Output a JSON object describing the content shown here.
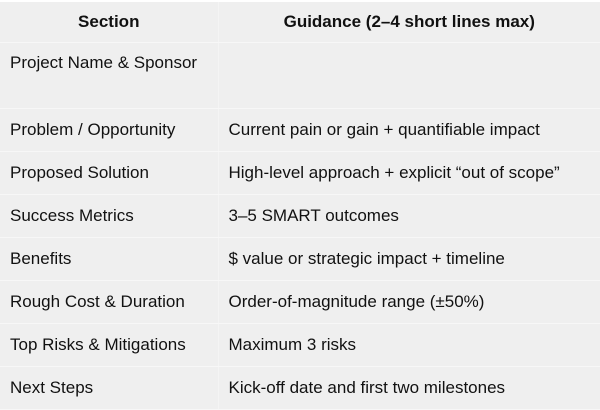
{
  "headers": [
    "Section",
    "Guidance (2–4 short lines max)"
  ],
  "rows": [
    {
      "section": "Project Name & Sponsor",
      "guidance": ""
    },
    {
      "section": "Problem / Opportunity",
      "guidance": "Current pain or gain + quantifiable impact"
    },
    {
      "section": "Proposed Solution",
      "guidance": "High-level approach + explicit “out of scope”"
    },
    {
      "section": "Success Metrics",
      "guidance": "3–5 SMART outcomes"
    },
    {
      "section": "Benefits",
      "guidance": "$ value or strategic impact + timeline"
    },
    {
      "section": "Rough Cost & Duration",
      "guidance": "Order-of-magnitude range (±50%)"
    },
    {
      "section": "Top Risks & Mitigations",
      "guidance": "Maximum 3 risks"
    },
    {
      "section": "Next Steps",
      "guidance": "Kick-off date and first two milestones"
    }
  ]
}
